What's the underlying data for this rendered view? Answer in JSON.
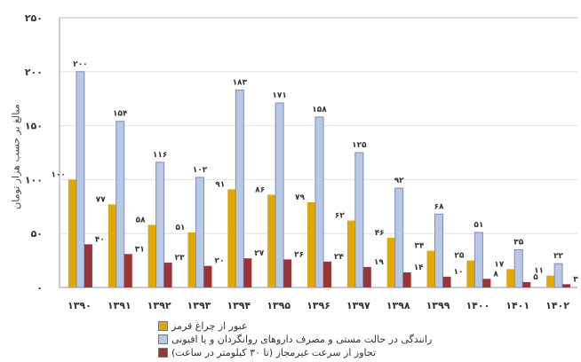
{
  "chart_data": {
    "type": "bar",
    "title": "",
    "xlabel": "",
    "ylabel": "مبالغ بر حسب هزار تومان",
    "ylim": [
      0,
      250
    ],
    "yticks": [
      0,
      50,
      100,
      150,
      200,
      250
    ],
    "grid": true,
    "legend_position": "bottom",
    "categories": [
      "1390",
      "1391",
      "1392",
      "1393",
      "1394",
      "1395",
      "1396",
      "1397",
      "1398",
      "1399",
      "1400",
      "1401",
      "1402"
    ],
    "series": [
      {
        "name": "عبور از چراغ قرمز",
        "color": "#E0A800",
        "values": [
          100,
          77,
          58,
          51,
          91,
          86,
          79,
          62,
          46,
          34,
          25,
          17,
          11
        ]
      },
      {
        "name": "رانندگی در حالت مستی و مصرف داروهای روانگردان و یا افیونی",
        "color": "#B8C9E6",
        "values": [
          200,
          154,
          116,
          102,
          183,
          171,
          158,
          125,
          92,
          68,
          51,
          35,
          22
        ]
      },
      {
        "name": "تجاوز از سرعت غیرمجاز (تا ۳۰ کیلومتر در ساعت)",
        "color": "#9B3434",
        "values": [
          40,
          31,
          23,
          20,
          27,
          26,
          24,
          19,
          14,
          10,
          8,
          5,
          3
        ]
      }
    ]
  }
}
